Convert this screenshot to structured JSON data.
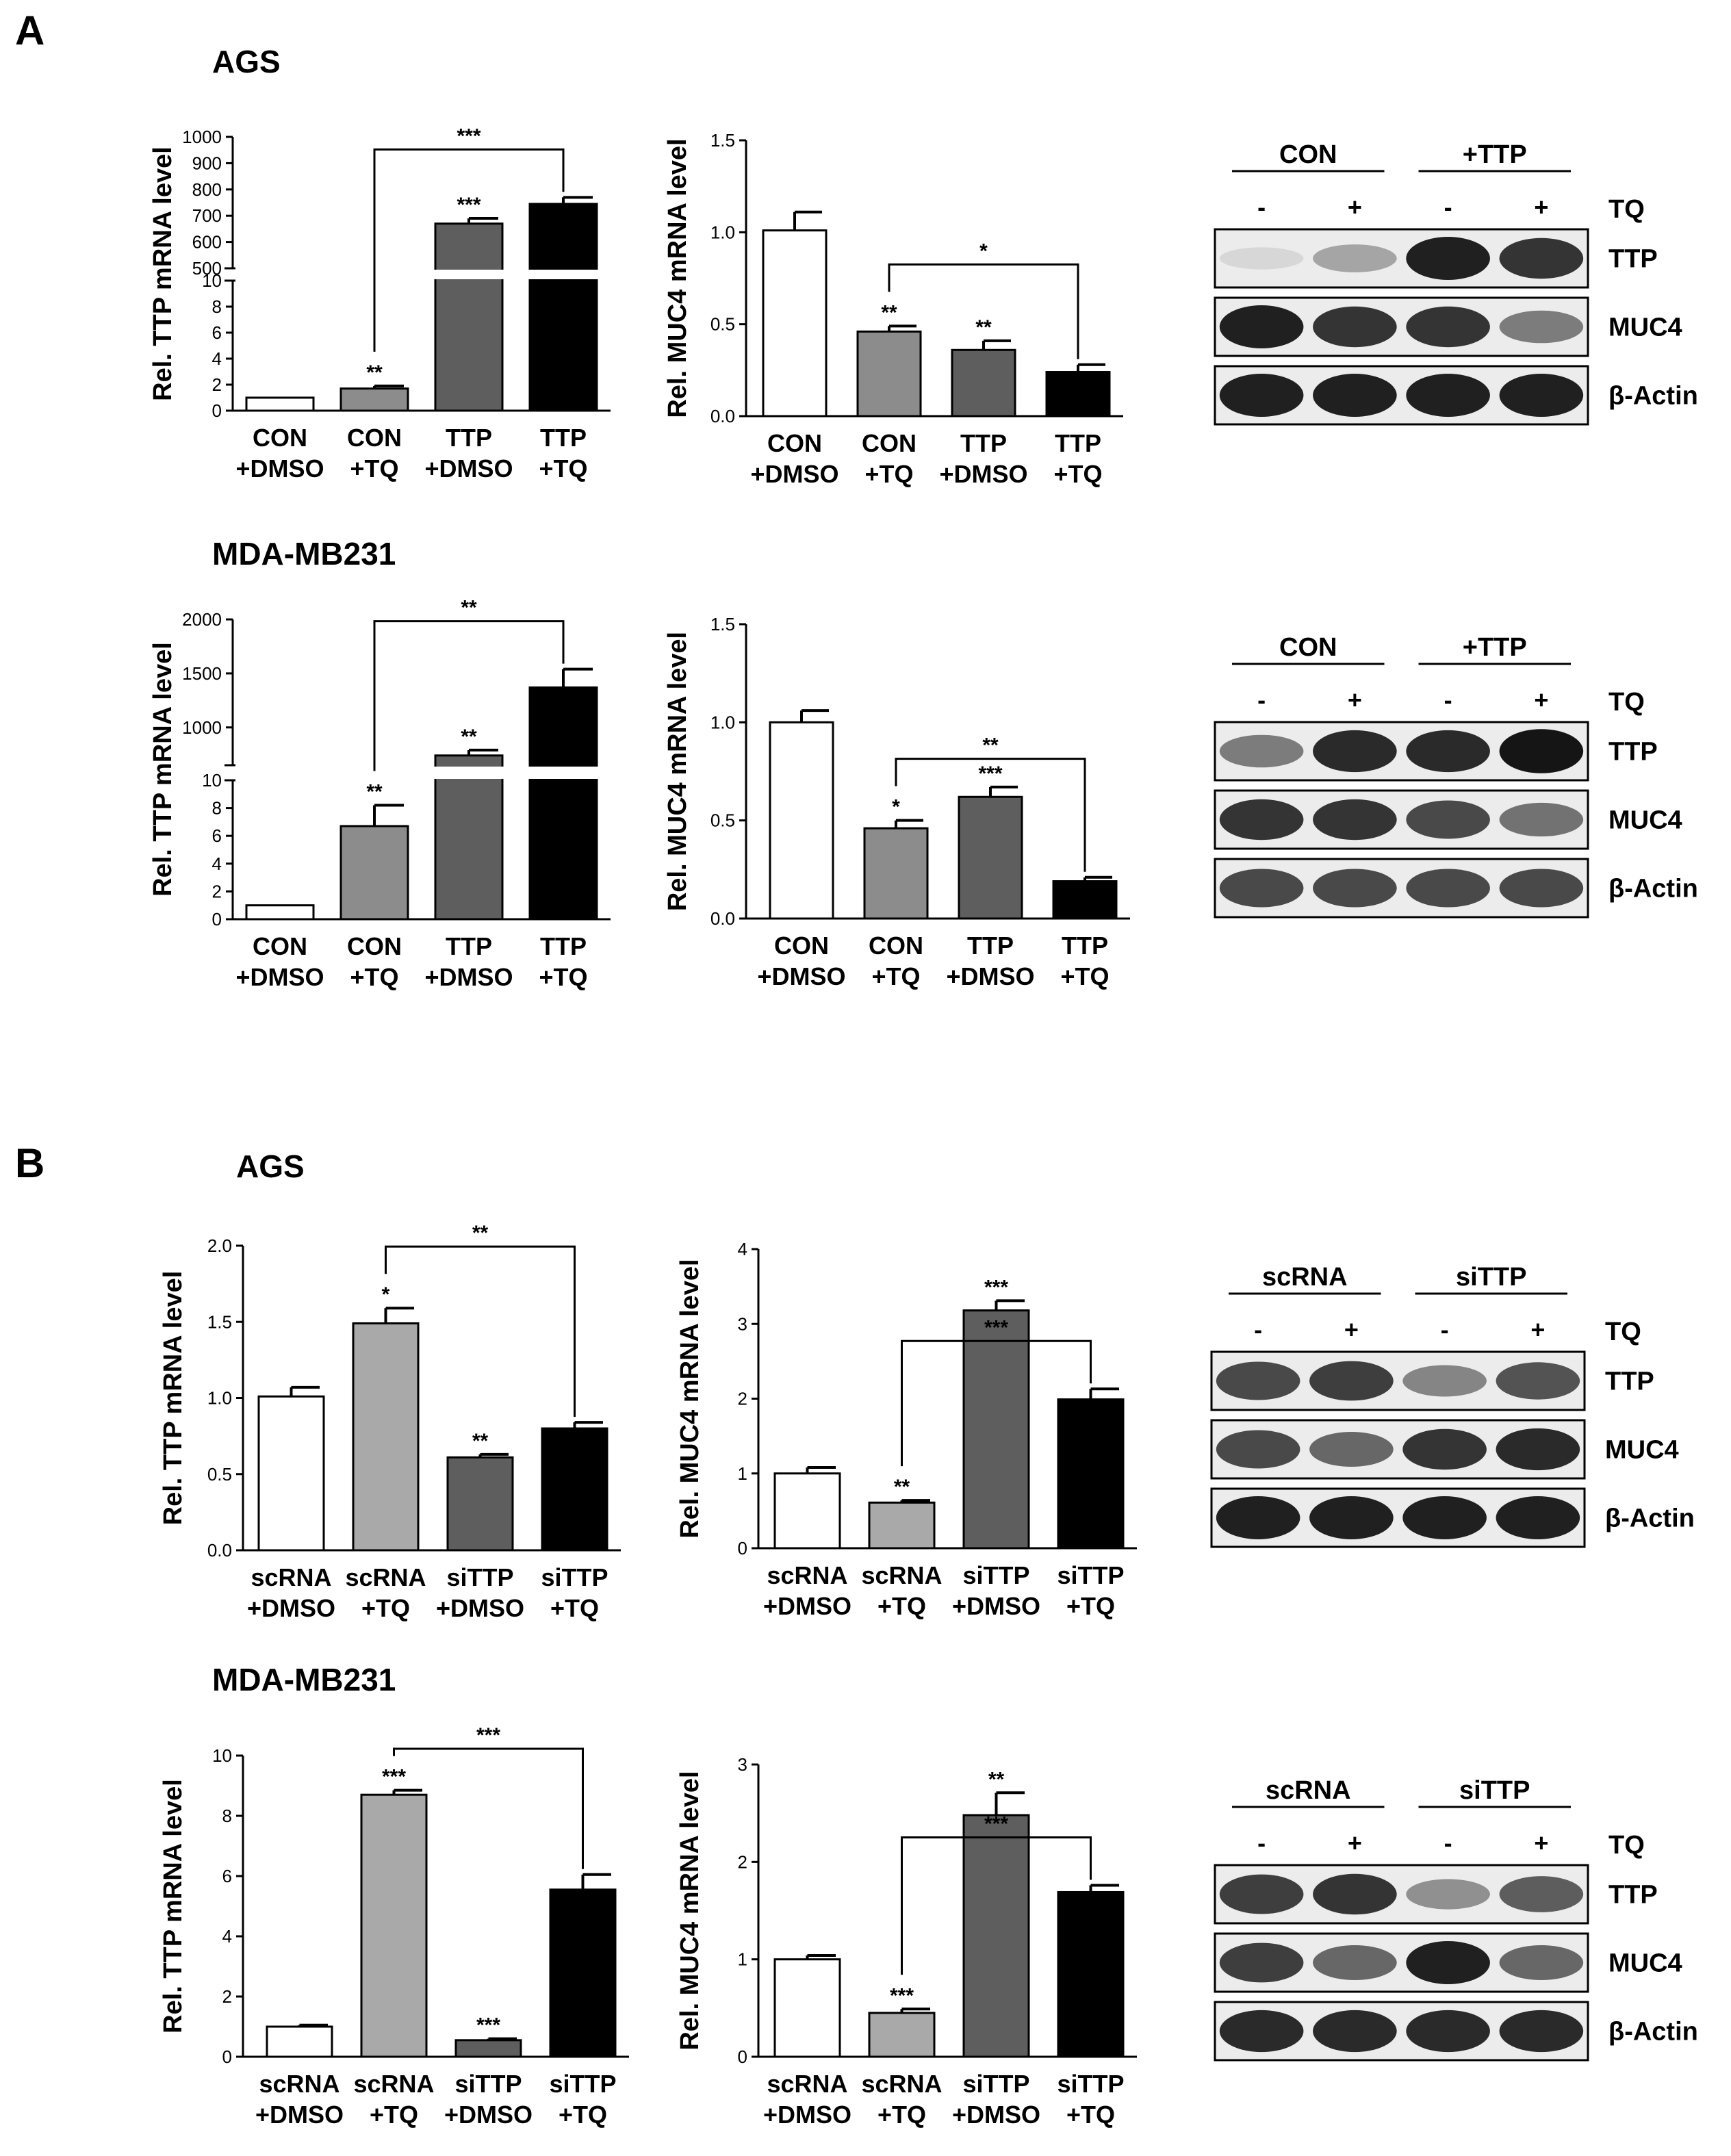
{
  "panels": [
    {
      "letter": "A",
      "cell_lines": [
        "AGS",
        "MDA-MB231"
      ]
    },
    {
      "letter": "B",
      "cell_lines": [
        "AGS",
        "MDA-MB231"
      ]
    }
  ],
  "colors": {
    "white": "#ffffff",
    "light_gray": "#a9a9a9",
    "gray": "#8c8c8c",
    "dark_gray": "#5e5e5e",
    "black": "#000000"
  },
  "chart_data": [
    {
      "type": "bar",
      "panel": "A",
      "cell_line": "AGS",
      "ylabel": "Rel. TTP mRNA level",
      "categories": [
        [
          "CON",
          "+DMSO"
        ],
        [
          "CON",
          "+TQ"
        ],
        [
          "TTP",
          "+DMSO"
        ],
        [
          "TTP",
          "+TQ"
        ]
      ],
      "values": [
        1,
        1.7,
        670,
        745
      ],
      "errors": [
        0,
        0.2,
        20,
        25
      ],
      "colors": [
        "#ffffff",
        "#8c8c8c",
        "#5e5e5e",
        "#000000"
      ],
      "stars": [
        "",
        "**",
        "***",
        ""
      ],
      "broken_axis": {
        "lower": [
          0,
          10
        ],
        "upper": [
          500,
          1000
        ],
        "lower_ticks": [
          0,
          2,
          4,
          6,
          8,
          10
        ],
        "upper_ticks": [
          500,
          600,
          700,
          800,
          900,
          1000
        ]
      },
      "bracket": {
        "from": 1,
        "to": 3,
        "label": "***"
      }
    },
    {
      "type": "bar",
      "panel": "A",
      "cell_line": "AGS",
      "ylabel": "Rel. MUC4 mRNA level",
      "categories": [
        [
          "CON",
          "+DMSO"
        ],
        [
          "CON",
          "+TQ"
        ],
        [
          "TTP",
          "+DMSO"
        ],
        [
          "TTP",
          "+TQ"
        ]
      ],
      "values": [
        1.01,
        0.46,
        0.36,
        0.24
      ],
      "errors": [
        0.1,
        0.03,
        0.05,
        0.04
      ],
      "colors": [
        "#ffffff",
        "#8c8c8c",
        "#5e5e5e",
        "#000000"
      ],
      "stars": [
        "",
        "**",
        "**",
        ""
      ],
      "ylim": [
        0,
        1.5
      ],
      "ticks": [
        "0.0",
        "0.5",
        "1.0",
        "1.5"
      ],
      "bracket": {
        "from": 1,
        "to": 3,
        "label": "*"
      }
    },
    {
      "type": "bar",
      "panel": "A",
      "cell_line": "MDA-MB231",
      "ylabel": "Rel. TTP mRNA level",
      "categories": [
        [
          "CON",
          "+DMSO"
        ],
        [
          "CON",
          "+TQ"
        ],
        [
          "TTP",
          "+DMSO"
        ],
        [
          "TTP",
          "+TQ"
        ]
      ],
      "values": [
        1,
        6.7,
        740,
        1370
      ],
      "errors": [
        0,
        1.5,
        50,
        170
      ],
      "colors": [
        "#ffffff",
        "#8c8c8c",
        "#5e5e5e",
        "#000000"
      ],
      "stars": [
        "",
        "**",
        "**",
        ""
      ],
      "broken_axis": {
        "lower": [
          0,
          10
        ],
        "upper": [
          650,
          2000
        ],
        "lower_ticks": [
          0,
          2,
          4,
          6,
          8,
          10
        ],
        "upper_ticks": [
          1000,
          1500,
          2000
        ]
      },
      "bracket": {
        "from": 1,
        "to": 3,
        "label": "**"
      }
    },
    {
      "type": "bar",
      "panel": "A",
      "cell_line": "MDA-MB231",
      "ylabel": "Rel. MUC4 mRNA level",
      "categories": [
        [
          "CON",
          "+DMSO"
        ],
        [
          "CON",
          "+TQ"
        ],
        [
          "TTP",
          "+DMSO"
        ],
        [
          "TTP",
          "+TQ"
        ]
      ],
      "values": [
        1.0,
        0.46,
        0.62,
        0.19
      ],
      "errors": [
        0.06,
        0.04,
        0.05,
        0.02
      ],
      "colors": [
        "#ffffff",
        "#8c8c8c",
        "#5e5e5e",
        "#000000"
      ],
      "stars": [
        "",
        "*",
        "***",
        ""
      ],
      "ylim": [
        0,
        1.5
      ],
      "ticks": [
        "0.0",
        "0.5",
        "1.0",
        "1.5"
      ],
      "bracket": {
        "from": 1,
        "to": 3,
        "label": "**"
      }
    },
    {
      "type": "bar",
      "panel": "B",
      "cell_line": "AGS",
      "ylabel": "Rel. TTP mRNA level",
      "categories": [
        [
          "scRNA",
          "+DMSO"
        ],
        [
          "scRNA",
          "+TQ"
        ],
        [
          "siTTP",
          "+DMSO"
        ],
        [
          "siTTP",
          "+TQ"
        ]
      ],
      "values": [
        1.01,
        1.49,
        0.61,
        0.8
      ],
      "errors": [
        0.06,
        0.1,
        0.02,
        0.04
      ],
      "colors": [
        "#ffffff",
        "#a9a9a9",
        "#5e5e5e",
        "#000000"
      ],
      "stars": [
        "",
        "*",
        "**",
        ""
      ],
      "ylim": [
        0,
        2.0
      ],
      "ticks": [
        "0.0",
        "0.5",
        "1.0",
        "1.5",
        "2.0"
      ],
      "bracket": {
        "from": 1,
        "to": 3,
        "label": "**"
      }
    },
    {
      "type": "bar",
      "panel": "B",
      "cell_line": "AGS",
      "ylabel": "Rel. MUC4 mRNA level",
      "categories": [
        [
          "scRNA",
          "+DMSO"
        ],
        [
          "scRNA",
          "+TQ"
        ],
        [
          "siTTP",
          "+DMSO"
        ],
        [
          "siTTP",
          "+TQ"
        ]
      ],
      "values": [
        1.0,
        0.61,
        3.18,
        1.99
      ],
      "errors": [
        0.08,
        0.03,
        0.13,
        0.14
      ],
      "colors": [
        "#ffffff",
        "#a9a9a9",
        "#5e5e5e",
        "#000000"
      ],
      "stars": [
        "",
        "**",
        "***",
        ""
      ],
      "ylim": [
        0,
        4
      ],
      "ticks": [
        "0",
        "1",
        "2",
        "3",
        "4"
      ],
      "bracket": {
        "from": 1,
        "to": 3,
        "label": "***"
      }
    },
    {
      "type": "bar",
      "panel": "B",
      "cell_line": "MDA-MB231",
      "ylabel": "Rel. TTP mRNA level",
      "categories": [
        [
          "scRNA",
          "+DMSO"
        ],
        [
          "scRNA",
          "+TQ"
        ],
        [
          "siTTP",
          "+DMSO"
        ],
        [
          "siTTP",
          "+TQ"
        ]
      ],
      "values": [
        1.0,
        8.7,
        0.55,
        5.55
      ],
      "errors": [
        0.05,
        0.15,
        0.05,
        0.5
      ],
      "colors": [
        "#ffffff",
        "#a9a9a9",
        "#5e5e5e",
        "#000000"
      ],
      "stars": [
        "",
        "***",
        "***",
        ""
      ],
      "ylim": [
        0,
        10
      ],
      "ticks": [
        "0",
        "2",
        "4",
        "6",
        "8",
        "10"
      ],
      "bracket": {
        "from": 1,
        "to": 3,
        "label": "***"
      }
    },
    {
      "type": "bar",
      "panel": "B",
      "cell_line": "MDA-MB231",
      "ylabel": "Rel. MUC4 mRNA level",
      "categories": [
        [
          "scRNA",
          "+DMSO"
        ],
        [
          "scRNA",
          "+TQ"
        ],
        [
          "siTTP",
          "+DMSO"
        ],
        [
          "siTTP",
          "+TQ"
        ]
      ],
      "values": [
        1.0,
        0.45,
        2.48,
        1.69
      ],
      "errors": [
        0.04,
        0.04,
        0.23,
        0.07
      ],
      "colors": [
        "#ffffff",
        "#a9a9a9",
        "#5e5e5e",
        "#000000"
      ],
      "stars": [
        "",
        "***",
        "**",
        ""
      ],
      "ylim": [
        0,
        3
      ],
      "ticks": [
        "0",
        "1",
        "2",
        "3"
      ],
      "bracket": {
        "from": 1,
        "to": 3,
        "label": "***"
      }
    }
  ],
  "blots": [
    {
      "panel": "A",
      "cell_line": "AGS",
      "groups": [
        "CON",
        "+TTP"
      ],
      "lanes": [
        "-",
        "+",
        "-",
        "+"
      ],
      "treatment": "TQ",
      "rows": [
        {
          "label": "TTP",
          "intensity": [
            0.05,
            0.3,
            0.95,
            0.85
          ]
        },
        {
          "label": "MUC4",
          "intensity": [
            0.95,
            0.85,
            0.85,
            0.5
          ]
        },
        {
          "label": "β-Actin",
          "intensity": [
            0.95,
            0.95,
            0.95,
            0.95
          ]
        }
      ]
    },
    {
      "panel": "A",
      "cell_line": "MDA-MB231",
      "groups": [
        "CON",
        "+TTP"
      ],
      "lanes": [
        "-",
        "+",
        "-",
        "+"
      ],
      "treatment": "TQ",
      "rows": [
        {
          "label": "TTP",
          "intensity": [
            0.5,
            0.9,
            0.9,
            1.0
          ]
        },
        {
          "label": "MUC4",
          "intensity": [
            0.85,
            0.85,
            0.75,
            0.55
          ]
        },
        {
          "label": "β-Actin",
          "intensity": [
            0.75,
            0.75,
            0.75,
            0.75
          ]
        }
      ]
    },
    {
      "panel": "B",
      "cell_line": "AGS",
      "groups": [
        "scRNA",
        "siTTP"
      ],
      "lanes": [
        "-",
        "+",
        "-",
        "+"
      ],
      "treatment": "TQ",
      "rows": [
        {
          "label": "TTP",
          "intensity": [
            0.75,
            0.8,
            0.45,
            0.7
          ]
        },
        {
          "label": "MUC4",
          "intensity": [
            0.75,
            0.6,
            0.85,
            0.9
          ]
        },
        {
          "label": "β-Actin",
          "intensity": [
            0.95,
            0.95,
            0.95,
            0.95
          ]
        }
      ]
    },
    {
      "panel": "B",
      "cell_line": "MDA-MB231",
      "groups": [
        "scRNA",
        "siTTP"
      ],
      "lanes": [
        "-",
        "+",
        "-",
        "+"
      ],
      "treatment": "TQ",
      "rows": [
        {
          "label": "TTP",
          "intensity": [
            0.8,
            0.85,
            0.4,
            0.65
          ]
        },
        {
          "label": "MUC4",
          "intensity": [
            0.8,
            0.6,
            0.95,
            0.6
          ]
        },
        {
          "label": "β-Actin",
          "intensity": [
            0.9,
            0.9,
            0.9,
            0.9
          ]
        }
      ]
    }
  ]
}
